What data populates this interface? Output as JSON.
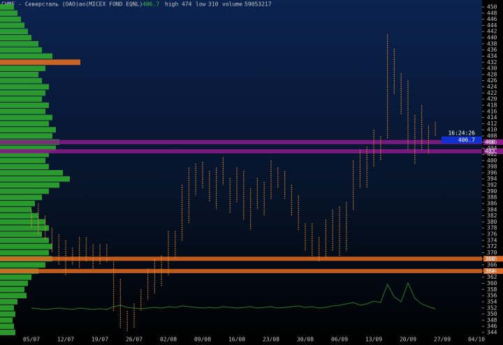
{
  "chart_data": {
    "type": "range",
    "title": "CHMF - Северсталь (ОАО)ао(MICEX FOND EQNL)",
    "last": 406.7,
    "time": "16:24:26",
    "high_label": "high",
    "high": 474,
    "low_label": "low",
    "low": 310,
    "volume_label": "volume",
    "volume_total": 59053217,
    "categories": [
      "05/07",
      null,
      null,
      null,
      null,
      "12/07",
      null,
      null,
      null,
      null,
      "19/07",
      null,
      null,
      null,
      null,
      "26/07",
      null,
      null,
      null,
      null,
      "02/08",
      null,
      null,
      null,
      null,
      "09/08",
      null,
      null,
      null,
      null,
      "16/08",
      null,
      null,
      null,
      null,
      "23/08",
      null,
      null,
      null,
      null,
      "30/08",
      null,
      null,
      null,
      null,
      "06/09",
      null,
      null,
      null,
      null,
      "13/09",
      null,
      null,
      null,
      null,
      "20/09",
      null,
      null,
      null,
      null,
      "27/09",
      null,
      null,
      null,
      null,
      "04/10"
    ],
    "highs": [
      384,
      386,
      382,
      378,
      376,
      374,
      371.6,
      375,
      375,
      372.7,
      372.7,
      372.7,
      367,
      361.4,
      351,
      353.4,
      358,
      364.8,
      368,
      369,
      377,
      377,
      392,
      397.7,
      399,
      399.5,
      396.6,
      397.7,
      401,
      394.3,
      397.7,
      396.6,
      391,
      394.3,
      393,
      400,
      397.7,
      396.6,
      392,
      388.6,
      379.5,
      379.5,
      375,
      380.7,
      384,
      385,
      386.4,
      400,
      403.4,
      404.5,
      410,
      408,
      441,
      436.4,
      428.4,
      426,
      414.8,
      418,
      411.4,
      412.5,
      null,
      null,
      null,
      null,
      null,
      null
    ],
    "lows": [
      378,
      376,
      374,
      370,
      366,
      362.5,
      366,
      365,
      367,
      364.8,
      366,
      367,
      351,
      345.5,
      344.3,
      345.5,
      351,
      354.5,
      356.8,
      359,
      362.5,
      368,
      374,
      379.5,
      388.6,
      391,
      386.4,
      384,
      392,
      383,
      386.4,
      380.7,
      377.3,
      384,
      382,
      387.5,
      391,
      387.5,
      382,
      377.3,
      370.5,
      368,
      367,
      368,
      370.5,
      369,
      370.5,
      384,
      391,
      391,
      397.7,
      400,
      407,
      421.6,
      414.8,
      403.4,
      398.9,
      403.4,
      402.3,
      408,
      null,
      null,
      null,
      null,
      null,
      null
    ],
    "color": "#e08a30",
    "ylim": [
      344,
      450
    ],
    "yticks": [
      344,
      346,
      348,
      350,
      352,
      354,
      356,
      358,
      360,
      362,
      364,
      366,
      368,
      370,
      372,
      374,
      376,
      378,
      380,
      382,
      384,
      386,
      388,
      390,
      392,
      394,
      396,
      398,
      400,
      402,
      404,
      406,
      408,
      410,
      412,
      414,
      416,
      418,
      420,
      422,
      424,
      426,
      428,
      430,
      432,
      434,
      436,
      438,
      440,
      442,
      444,
      446,
      448,
      450
    ],
    "profile": {
      "color": "#2fa82f",
      "prices": [
        450,
        448,
        446,
        444,
        442,
        440,
        438,
        436,
        434,
        432,
        430,
        428,
        426,
        424,
        422,
        420,
        418,
        416,
        414,
        412,
        410,
        408,
        406,
        404,
        402,
        400,
        398,
        396,
        394,
        392,
        390,
        388,
        386,
        384,
        382,
        380,
        378,
        376,
        374,
        372,
        370,
        368,
        366,
        364,
        362,
        360,
        358,
        356,
        354,
        352,
        350,
        348,
        346,
        344
      ],
      "values": [
        20,
        25,
        30,
        35,
        40,
        45,
        55,
        60,
        75,
        115,
        65,
        55,
        60,
        70,
        65,
        60,
        70,
        65,
        75,
        70,
        80,
        75,
        85,
        80,
        70,
        65,
        70,
        90,
        100,
        85,
        70,
        60,
        50,
        45,
        55,
        65,
        70,
        60,
        70,
        75,
        70,
        75,
        65,
        55,
        45,
        40,
        35,
        38,
        25,
        20,
        22,
        18,
        20,
        22
      ]
    },
    "volume": {
      "color": "#2a7a2a",
      "values": [
        6,
        5,
        4,
        5,
        6,
        5,
        4,
        6,
        5,
        4,
        5,
        4,
        8,
        10,
        7,
        6,
        5,
        6,
        7,
        6,
        8,
        7,
        9,
        8,
        7,
        6,
        7,
        6,
        8,
        7,
        6,
        7,
        8,
        6,
        7,
        8,
        6,
        7,
        8,
        9,
        7,
        8,
        6,
        7,
        9,
        10,
        12,
        14,
        10,
        12,
        16,
        14,
        40,
        22,
        15,
        42,
        20,
        12,
        8,
        5,
        null,
        null,
        null,
        null,
        null,
        null
      ]
    },
    "levels": [
      {
        "price": 406,
        "color": "#8a1a8a"
      },
      {
        "price": 403,
        "color": "#8a1a8a"
      },
      {
        "price": 368,
        "color": "#e06a20"
      },
      {
        "price": 364,
        "color": "#e06a20"
      }
    ]
  }
}
